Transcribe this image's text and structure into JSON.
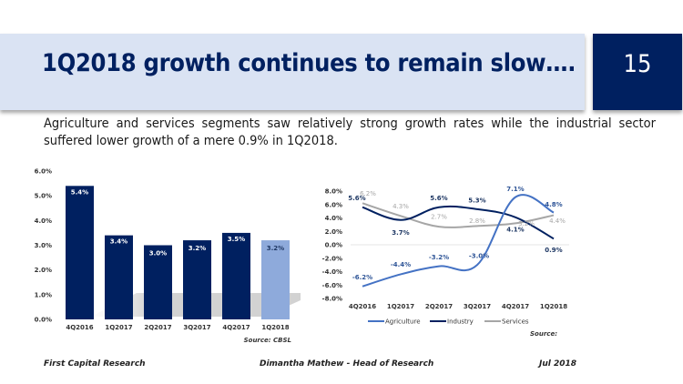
{
  "header": {
    "title": "1Q2018 growth continues to remain slow….",
    "page_number": "15"
  },
  "subtitle": "Agriculture and services segments saw relatively strong growth rates while the industrial sector suffered lower growth of a mere 0.9% in 1Q2018.",
  "colors": {
    "navy": "#002060",
    "highlight_bar": "#8eaadb",
    "agriculture": "#4472c4",
    "industry": "#002060",
    "services": "#a6a6a6",
    "header_band": "#dae3f3"
  },
  "chart_data": [
    {
      "type": "bar",
      "title": "",
      "categories": [
        "4Q2016",
        "1Q2017",
        "2Q2017",
        "3Q2017",
        "4Q2017",
        "1Q2018"
      ],
      "values": [
        5.4,
        3.4,
        3.0,
        3.2,
        3.5,
        3.2
      ],
      "data_labels": [
        "5.4%",
        "3.4%",
        "3.0%",
        "3.2%",
        "3.5%",
        "3.2%"
      ],
      "highlighted_index": 5,
      "ylim": [
        0,
        6
      ],
      "yticks": [
        "0.0%",
        "1.0%",
        "2.0%",
        "3.0%",
        "4.0%",
        "5.0%",
        "6.0%"
      ],
      "ytick_values": [
        0,
        1,
        2,
        3,
        4,
        5,
        6
      ],
      "xlabel": "",
      "ylabel": "",
      "grid": false,
      "source": "Source: CBSL"
    },
    {
      "type": "line",
      "title": "",
      "categories": [
        "4Q2016",
        "1Q2017",
        "2Q2017",
        "3Q2017",
        "4Q2017",
        "1Q2018"
      ],
      "series": [
        {
          "name": "Agriculture",
          "values": [
            -6.2,
            -4.4,
            -3.2,
            -3.0,
            7.1,
            4.8
          ],
          "labels": [
            "-6.2%",
            "-4.4%",
            "-3.2%",
            "-3.0%",
            "7.1%",
            "4.8%"
          ]
        },
        {
          "name": "Industry",
          "values": [
            5.6,
            3.7,
            5.6,
            5.3,
            4.1,
            0.9
          ],
          "labels": [
            "5.6%",
            "3.7%",
            "5.6%",
            "5.3%",
            "4.1%",
            "0.9%"
          ]
        },
        {
          "name": "Services",
          "values": [
            6.2,
            4.3,
            2.7,
            2.8,
            3.2,
            4.4
          ],
          "labels": [
            "6.2%",
            "4.3%",
            "2.7%",
            "2.8%",
            "3.2%",
            "4.4%"
          ]
        }
      ],
      "ylim": [
        -8,
        8
      ],
      "yticks": [
        "-8.0%",
        "-6.0%",
        "-4.0%",
        "-2.0%",
        "0.0%",
        "2.0%",
        "4.0%",
        "6.0%",
        "8.0%"
      ],
      "ytick_values": [
        -8,
        -6,
        -4,
        -2,
        0,
        2,
        4,
        6,
        8
      ],
      "xlabel": "",
      "ylabel": "",
      "grid": false,
      "legend_position": "bottom",
      "source": "Source:"
    }
  ],
  "footer": {
    "left": "First Capital Research",
    "center": "Dimantha Mathew - Head of Research",
    "right": "Jul 2018"
  }
}
